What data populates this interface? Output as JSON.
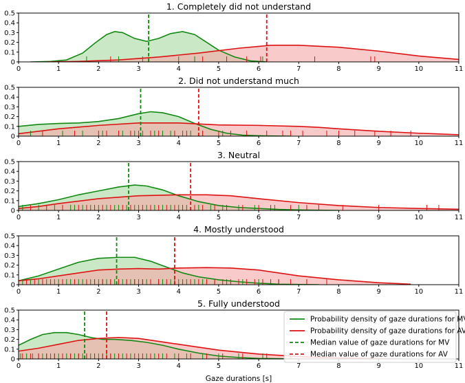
{
  "colors": {
    "mv": "#118811",
    "av": "#dd1111",
    "mv_fill": "#a8d8a0",
    "av_fill": "#f5a6a6"
  },
  "chart_data": [
    {
      "type": "area",
      "title": "1. Completely did not understand",
      "xlim": [
        0,
        11
      ],
      "ylim": [
        0,
        0.5
      ],
      "xticks": [
        0,
        1,
        2,
        3,
        4,
        5,
        6,
        7,
        8,
        9,
        10,
        11
      ],
      "yticks": [
        0,
        0.1,
        0.2,
        0.3,
        0.4,
        0.5
      ],
      "series": [
        {
          "key": "mv",
          "x": [
            0.3,
            0.8,
            1.2,
            1.6,
            1.9,
            2.2,
            2.4,
            2.6,
            2.9,
            3.2,
            3.5,
            3.8,
            4.1,
            4.4,
            4.7,
            5.0,
            5.4,
            5.8,
            6.2
          ],
          "y": [
            0,
            0.005,
            0.02,
            0.09,
            0.19,
            0.28,
            0.31,
            0.3,
            0.24,
            0.21,
            0.24,
            0.29,
            0.31,
            0.28,
            0.2,
            0.12,
            0.05,
            0.01,
            0
          ]
        },
        {
          "key": "av",
          "x": [
            0.7,
            1.5,
            2.5,
            3.5,
            4.5,
            5.5,
            6.3,
            7.0,
            8.0,
            9.0,
            10.0,
            11.0
          ],
          "y": [
            0,
            0.005,
            0.02,
            0.05,
            0.09,
            0.14,
            0.17,
            0.17,
            0.15,
            0.11,
            0.06,
            0.025
          ]
        }
      ],
      "medians": {
        "mv": 3.25,
        "av": 6.2
      },
      "rugs": {
        "mv": [
          1.7,
          2.5,
          3.1,
          4.0,
          4.4,
          6.1
        ],
        "av": [
          2.3,
          4.6,
          5.2,
          5.7,
          6.05,
          7.4,
          8.8,
          8.9
        ]
      }
    },
    {
      "type": "area",
      "title": "2. Did not understand much",
      "xlim": [
        0,
        11
      ],
      "ylim": [
        0,
        0.5
      ],
      "xticks": [
        0,
        1,
        2,
        3,
        4,
        5,
        6,
        7,
        8,
        9,
        10,
        11
      ],
      "yticks": [
        0,
        0.1,
        0.2,
        0.3,
        0.4,
        0.5
      ],
      "series": [
        {
          "key": "mv",
          "x": [
            0,
            0.5,
            1.0,
            1.5,
            2.0,
            2.5,
            3.0,
            3.3,
            3.6,
            4.0,
            4.4,
            4.8,
            5.2,
            5.6,
            6.0,
            6.4,
            6.8
          ],
          "y": [
            0.1,
            0.12,
            0.13,
            0.135,
            0.15,
            0.18,
            0.23,
            0.25,
            0.24,
            0.2,
            0.13,
            0.07,
            0.03,
            0.01,
            0.004,
            0.001,
            0
          ]
        },
        {
          "key": "av",
          "x": [
            0,
            1,
            2,
            3,
            4,
            5,
            6,
            7,
            7.5,
            8,
            9,
            10,
            11
          ],
          "y": [
            0.025,
            0.075,
            0.11,
            0.135,
            0.135,
            0.115,
            0.11,
            0.1,
            0.09,
            0.075,
            0.05,
            0.03,
            0.015
          ]
        }
      ],
      "medians": {
        "mv": 3.05,
        "av": 4.5
      },
      "rugs": {
        "mv": [
          0.3,
          1.1,
          1.6,
          2.1,
          2.6,
          2.9,
          3.1,
          3.4,
          3.6,
          3.8,
          4.1,
          4.3,
          4.6,
          5.1
        ],
        "av": [
          0.6,
          1.4,
          2.0,
          2.2,
          2.5,
          2.8,
          3.0,
          3.3,
          3.5,
          3.9,
          4.2,
          4.6,
          5.0,
          5.3,
          5.7,
          6.2,
          6.6,
          6.8,
          7.1,
          7.7,
          8.0,
          8.4,
          8.9,
          9.3,
          9.8
        ]
      }
    },
    {
      "type": "area",
      "title": "3. Neutral",
      "xlim": [
        0,
        11
      ],
      "ylim": [
        0,
        0.5
      ],
      "xticks": [
        0,
        1,
        2,
        3,
        4,
        5,
        6,
        7,
        8,
        9,
        10,
        11
      ],
      "yticks": [
        0,
        0.1,
        0.2,
        0.3,
        0.4,
        0.5
      ],
      "series": [
        {
          "key": "mv",
          "x": [
            0,
            0.5,
            1.0,
            1.5,
            2.0,
            2.5,
            2.9,
            3.2,
            3.6,
            4.0,
            4.5,
            5.0,
            5.5,
            6.0,
            6.5,
            7.0,
            7.5,
            8.0
          ],
          "y": [
            0.04,
            0.07,
            0.11,
            0.16,
            0.2,
            0.24,
            0.26,
            0.25,
            0.21,
            0.15,
            0.09,
            0.05,
            0.03,
            0.02,
            0.01,
            0.005,
            0.002,
            0
          ]
        },
        {
          "key": "av",
          "x": [
            0,
            0.5,
            1,
            2,
            3,
            4,
            4.7,
            5.3,
            6,
            7,
            8,
            9,
            10,
            11
          ],
          "y": [
            0.02,
            0.04,
            0.07,
            0.12,
            0.15,
            0.16,
            0.16,
            0.15,
            0.12,
            0.08,
            0.05,
            0.03,
            0.02,
            0.012
          ]
        }
      ],
      "medians": {
        "mv": 2.75,
        "av": 4.3
      },
      "rugs": {
        "mv": [
          0.1,
          0.5,
          0.9,
          1.3,
          1.4,
          1.6,
          1.8,
          2.0,
          2.2,
          2.4,
          2.5,
          2.7,
          2.9,
          3.0,
          3.2,
          3.4,
          3.6,
          3.8,
          4.0,
          4.2,
          4.5,
          4.8,
          5.1,
          5.5,
          5.9,
          6.4,
          7.0
        ],
        "av": [
          0.3,
          0.7,
          1.1,
          1.5,
          1.7,
          1.9,
          2.1,
          2.3,
          2.6,
          2.8,
          3.1,
          3.3,
          3.5,
          3.7,
          3.9,
          4.1,
          4.4,
          4.6,
          4.9,
          5.2,
          5.6,
          6.0,
          6.3,
          6.8,
          7.2,
          7.5,
          8.1,
          9.0,
          10.2,
          10.5
        ]
      }
    },
    {
      "type": "area",
      "title": "4. Mostly understood",
      "xlim": [
        0,
        11
      ],
      "ylim": [
        0,
        0.5
      ],
      "xticks": [
        0,
        1,
        2,
        3,
        4,
        5,
        6,
        7,
        8,
        9,
        10,
        11
      ],
      "yticks": [
        0,
        0.1,
        0.2,
        0.3,
        0.4,
        0.5
      ],
      "series": [
        {
          "key": "mv",
          "x": [
            0,
            0.5,
            1.0,
            1.5,
            2.0,
            2.5,
            2.9,
            3.3,
            3.7,
            4.1,
            4.5,
            5.0,
            5.5,
            6.0,
            6.5,
            7.0,
            7.5
          ],
          "y": [
            0.04,
            0.09,
            0.16,
            0.23,
            0.27,
            0.28,
            0.28,
            0.24,
            0.18,
            0.12,
            0.08,
            0.05,
            0.03,
            0.015,
            0.005,
            0.002,
            0
          ]
        },
        {
          "key": "av",
          "x": [
            0,
            0.5,
            1,
            1.5,
            2,
            2.5,
            3,
            3.5,
            4,
            4.7,
            5.3,
            6,
            6.5,
            7,
            8,
            9,
            9.8
          ],
          "y": [
            0.04,
            0.06,
            0.09,
            0.12,
            0.15,
            0.16,
            0.165,
            0.16,
            0.17,
            0.175,
            0.17,
            0.15,
            0.12,
            0.09,
            0.05,
            0.02,
            0.005
          ]
        }
      ],
      "medians": {
        "mv": 2.45,
        "av": 3.9
      },
      "rugs": {
        "mv": [
          0.1,
          0.3,
          0.5,
          0.7,
          0.9,
          1.0,
          1.2,
          1.3,
          1.5,
          1.6,
          1.8,
          1.9,
          2.0,
          2.1,
          2.2,
          2.3,
          2.4,
          2.5,
          2.6,
          2.7,
          2.8,
          2.9,
          3.0,
          3.1,
          3.2,
          3.3,
          3.5,
          3.6,
          3.8,
          4.0,
          4.2,
          4.4,
          4.6,
          4.9,
          5.2,
          5.6,
          6.0,
          6.5
        ],
        "av": [
          0.2,
          0.4,
          0.6,
          0.8,
          1.1,
          1.4,
          1.7,
          1.9,
          2.1,
          2.3,
          2.5,
          2.7,
          2.9,
          3.1,
          3.3,
          3.5,
          3.7,
          3.9,
          4.1,
          4.3,
          4.5,
          4.7,
          4.9,
          5.1,
          5.3,
          5.5,
          5.7,
          5.9,
          6.1,
          6.3,
          6.5,
          6.8,
          7.2,
          7.7
        ]
      }
    },
    {
      "type": "area",
      "title": "5. Fully understood",
      "xlim": [
        0,
        11
      ],
      "ylim": [
        0,
        0.5
      ],
      "xticks": [
        0,
        1,
        2,
        3,
        4,
        5,
        6,
        7,
        8,
        9,
        10,
        11
      ],
      "yticks": [
        0,
        0.1,
        0.2,
        0.3,
        0.4,
        0.5
      ],
      "xlabel": "Gaze durations [s]",
      "series": [
        {
          "key": "mv",
          "x": [
            0,
            0.3,
            0.6,
            0.9,
            1.2,
            1.5,
            1.8,
            2.1,
            2.4,
            2.8,
            3.2,
            3.6,
            4.0,
            4.5,
            5.0,
            5.5,
            6.0,
            6.5,
            7.0
          ],
          "y": [
            0.14,
            0.2,
            0.25,
            0.27,
            0.27,
            0.25,
            0.22,
            0.2,
            0.2,
            0.19,
            0.17,
            0.14,
            0.1,
            0.06,
            0.03,
            0.015,
            0.005,
            0.002,
            0
          ]
        },
        {
          "key": "av",
          "x": [
            0,
            0.5,
            1,
            1.5,
            2,
            2.5,
            3,
            3.5,
            4,
            4.5,
            5,
            5.5,
            6,
            7,
            8,
            9,
            9.6
          ],
          "y": [
            0.08,
            0.11,
            0.15,
            0.19,
            0.21,
            0.22,
            0.21,
            0.18,
            0.15,
            0.12,
            0.09,
            0.07,
            0.05,
            0.025,
            0.01,
            0.003,
            0
          ]
        }
      ],
      "medians": {
        "mv": 1.65,
        "av": 2.2
      },
      "rugs": {
        "mv": [
          0.05,
          0.2,
          0.35,
          0.5,
          0.6,
          0.7,
          0.8,
          0.9,
          1.0,
          1.1,
          1.2,
          1.3,
          1.4,
          1.5,
          1.6,
          1.7,
          1.8,
          1.9,
          2.0,
          2.1,
          2.2,
          2.3,
          2.4,
          2.5,
          2.6,
          2.8,
          3.0,
          3.2,
          3.4,
          3.6,
          3.9,
          4.2,
          4.6,
          5.0,
          5.5,
          6.1
        ],
        "av": [
          0.1,
          0.3,
          0.5,
          0.7,
          0.9,
          1.1,
          1.3,
          1.5,
          1.7,
          1.9,
          2.1,
          2.3,
          2.5,
          2.7,
          2.9,
          3.1,
          3.3,
          3.5,
          3.7,
          4.0,
          4.3,
          4.7,
          5.1,
          5.6,
          6.2,
          6.8
        ]
      },
      "legend": {
        "position": "top-right",
        "entries": [
          {
            "key": "mv",
            "style": "solid",
            "label": "Probability density of gaze durations for MV"
          },
          {
            "key": "av",
            "style": "solid",
            "label": "Probability density of gaze durations for AV"
          },
          {
            "key": "mv",
            "style": "dashed",
            "label": "Median value of gaze durations for MV"
          },
          {
            "key": "av",
            "style": "dashed",
            "label": "Median value of gaze durations for AV"
          }
        ]
      }
    }
  ]
}
